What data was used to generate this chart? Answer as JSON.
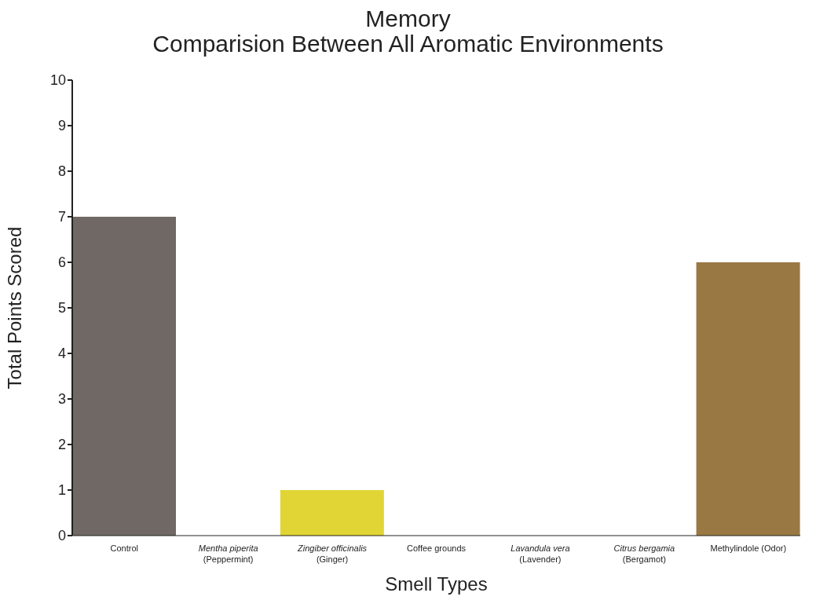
{
  "chart_data": {
    "type": "bar",
    "title": "Memory",
    "subtitle": "Comparision Between All Aromatic Environments",
    "xlabel": "Smell Types",
    "ylabel": "Total Points Scored",
    "categories": [
      "Control",
      "Mentha piperita\n(Peppermint)",
      "Zingiber officinalis\n(Ginger)",
      "Coffee grounds",
      "Lavandula vera\n(Lavender)",
      "Citrus bergamia\n(Bergamot)",
      "Methylindole (Odor)"
    ],
    "values": [
      7,
      0,
      1,
      0,
      0,
      0,
      6
    ],
    "colors": [
      "#6f6864",
      "#6f6864",
      "#e0d535",
      "#6f6864",
      "#6f6864",
      "#6f6864",
      "#9a7843"
    ],
    "ylim": [
      0,
      10
    ],
    "yticks": [
      0,
      1,
      2,
      3,
      4,
      5,
      6,
      7,
      8,
      9,
      10
    ]
  }
}
